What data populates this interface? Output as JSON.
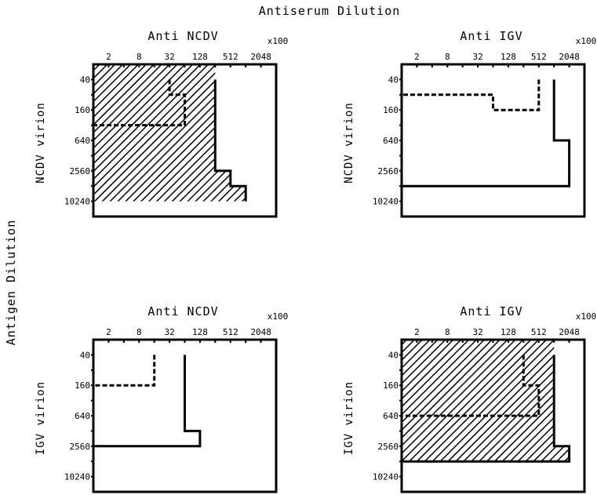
{
  "figure": {
    "top_title": "Antiserum Dilution",
    "left_title": "Antigen Dilution",
    "x_ticks": [
      "2",
      "8",
      "32",
      "128",
      "512",
      "2048"
    ],
    "x_multiplier": "x100",
    "y_ticks": [
      "40",
      "160",
      "640",
      "2560",
      "10240"
    ],
    "panels": [
      {
        "title": "Anti NCDV",
        "row_label": "NCDV virion",
        "hatched": true
      },
      {
        "title": "Anti IGV",
        "row_label": "NCDV virion",
        "hatched": false
      },
      {
        "title": "Anti NCDV",
        "row_label": "IGV virion",
        "hatched": false
      },
      {
        "title": "Anti IGV",
        "row_label": "IGV virion",
        "hatched": true
      }
    ]
  },
  "chart_data": {
    "type": "step-region diagram",
    "x_axis": {
      "label": "Antiserum Dilution",
      "scale": "log2",
      "ticks": [
        2,
        8,
        32,
        128,
        512,
        2048
      ],
      "multiplier": "x100",
      "range": [
        1,
        4096
      ]
    },
    "y_axis": {
      "label": "Antigen Dilution",
      "scale": "log2",
      "ticks": [
        40,
        160,
        640,
        2560,
        10240
      ],
      "range": [
        20,
        20480
      ]
    },
    "panels": [
      {
        "antiserum": "Anti NCDV",
        "antigen": "NCDV virion",
        "hatched": true,
        "solid_boundary": [
          [
            256,
            40
          ],
          [
            256,
            2560
          ],
          [
            512,
            2560
          ],
          [
            512,
            5120
          ],
          [
            1024,
            5120
          ],
          [
            1024,
            10240
          ]
        ],
        "dashed_boundary": [
          [
            32,
            40
          ],
          [
            32,
            80
          ],
          [
            64,
            80
          ],
          [
            64,
            320
          ],
          [
            1,
            320
          ]
        ]
      },
      {
        "antiserum": "Anti IGV",
        "antigen": "NCDV virion",
        "hatched": false,
        "solid_boundary": [
          [
            1024,
            40
          ],
          [
            1024,
            640
          ],
          [
            2048,
            640
          ],
          [
            2048,
            5120
          ],
          [
            1,
            5120
          ]
        ],
        "dashed_boundary": [
          [
            512,
            40
          ],
          [
            512,
            160
          ],
          [
            64,
            160
          ],
          [
            64,
            80
          ],
          [
            1,
            80
          ]
        ]
      },
      {
        "antiserum": "Anti NCDV",
        "antigen": "IGV virion",
        "hatched": false,
        "solid_boundary": [
          [
            64,
            40
          ],
          [
            64,
            1280
          ],
          [
            128,
            1280
          ],
          [
            128,
            2560
          ],
          [
            1,
            2560
          ]
        ],
        "dashed_boundary": [
          [
            16,
            40
          ],
          [
            16,
            160
          ],
          [
            1,
            160
          ]
        ]
      },
      {
        "antiserum": "Anti IGV",
        "antigen": "IGV virion",
        "hatched": true,
        "solid_boundary": [
          [
            1024,
            40
          ],
          [
            1024,
            2560
          ],
          [
            2048,
            2560
          ],
          [
            2048,
            5120
          ],
          [
            1,
            5120
          ]
        ],
        "dashed_boundary": [
          [
            256,
            40
          ],
          [
            256,
            160
          ],
          [
            512,
            160
          ],
          [
            512,
            640
          ],
          [
            1,
            640
          ]
        ]
      }
    ]
  }
}
